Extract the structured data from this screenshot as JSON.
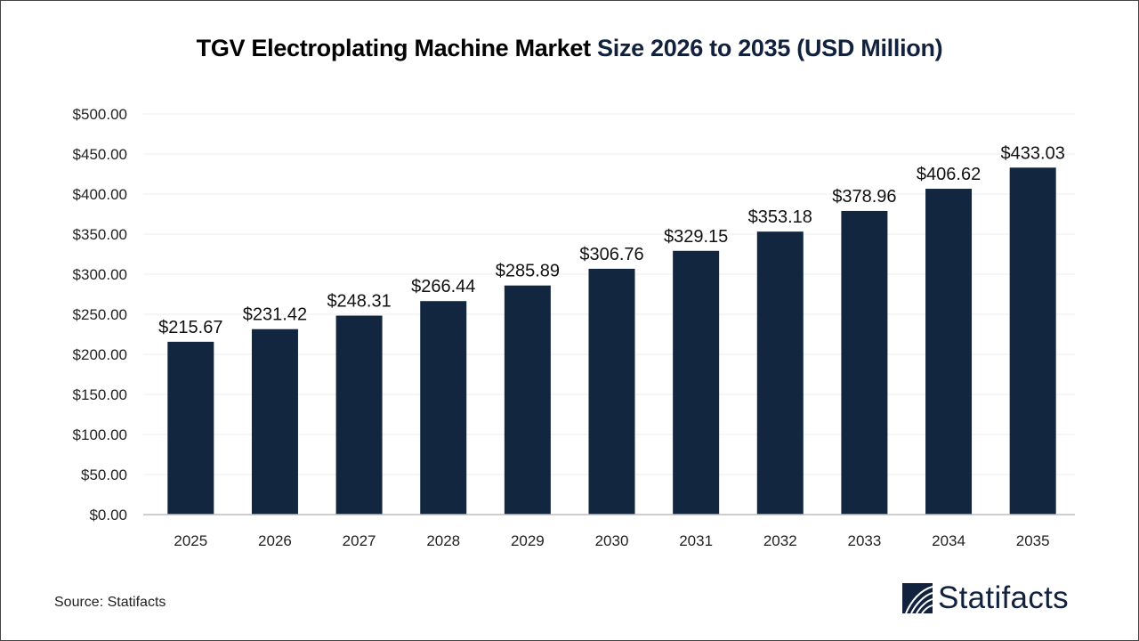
{
  "chart_data": {
    "type": "bar",
    "title_part1": "TGV Electroplating Machine Market",
    "title_part2": "Size 2026 to 2035 (USD Million)",
    "categories": [
      "2025",
      "2026",
      "2027",
      "2028",
      "2029",
      "2030",
      "2031",
      "2032",
      "2033",
      "2034",
      "2035"
    ],
    "values": [
      215.67,
      231.42,
      248.31,
      266.44,
      285.89,
      306.76,
      329.15,
      353.18,
      378.96,
      406.62,
      433.03
    ],
    "data_labels": [
      "$215.67",
      "$231.42",
      "$248.31",
      "$266.44",
      "$285.89",
      "$306.76",
      "$329.15",
      "$353.18",
      "$378.96",
      "$406.62",
      "$433.03"
    ],
    "ylim": [
      0,
      500
    ],
    "yticks": [
      "$0.00",
      "$50.00",
      "$100.00",
      "$150.00",
      "$200.00",
      "$250.00",
      "$300.00",
      "$350.00",
      "$400.00",
      "$450.00",
      "$500.00"
    ],
    "xlabel": "",
    "ylabel": "",
    "grid": true,
    "bar_color": "#12263f"
  },
  "source": "Source: Statifacts",
  "logo": {
    "text": "Statifacts",
    "color": "#12213d"
  }
}
